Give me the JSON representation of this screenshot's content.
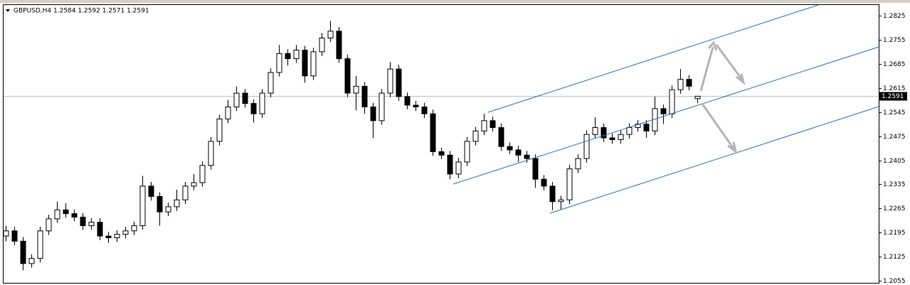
{
  "chart_data": {
    "type": "candlestick",
    "title": "GBPUSD,H4  1.2584 1.2592 1.2571 1.2591",
    "open": [
      1.2185,
      1.22,
      1.217,
      1.2105,
      1.212,
      1.22,
      1.2235,
      1.2261,
      1.225,
      1.224,
      1.2215,
      1.2225,
      1.2185,
      1.218,
      1.219,
      1.22,
      1.2215,
      1.233,
      1.23,
      1.2255,
      1.227,
      1.229,
      1.233,
      1.234,
      1.239,
      1.246,
      1.2525,
      1.256,
      1.26,
      1.257,
      1.254,
      1.26,
      1.266,
      1.2715,
      1.27,
      1.2725,
      1.265,
      1.272,
      1.276,
      1.278,
      1.27,
      1.26,
      1.262,
      1.256,
      1.252,
      1.26,
      1.267,
      1.259,
      1.2565,
      1.256,
      1.254,
      1.243,
      1.242,
      1.2365,
      1.24,
      1.246,
      1.249,
      1.252,
      1.25,
      1.2445,
      1.2435,
      1.242,
      1.241,
      1.235,
      1.233,
      1.2285,
      1.229,
      1.238,
      1.241,
      1.248,
      1.25,
      1.247,
      1.2465,
      1.248,
      1.25,
      1.251,
      1.249,
      1.2555,
      1.254,
      1.261,
      1.264,
      1.2584
    ],
    "high": [
      1.2215,
      1.2212,
      1.2182,
      1.2132,
      1.2212,
      1.2247,
      1.2285,
      1.228,
      1.2262,
      1.2252,
      1.2237,
      1.2237,
      1.2197,
      1.2202,
      1.2212,
      1.2227,
      1.236,
      1.2342,
      1.2312,
      1.2282,
      1.232,
      1.2342,
      1.2365,
      1.2402,
      1.2472,
      1.2537,
      1.258,
      1.262,
      1.2612,
      1.2582,
      1.2612,
      1.2672,
      1.274,
      1.2727,
      1.274,
      1.2737,
      1.2732,
      1.2775,
      1.281,
      1.2792,
      1.2712,
      1.265,
      1.2632,
      1.2572,
      1.2612,
      1.269,
      1.2682,
      1.2602,
      1.2577,
      1.2572,
      1.2552,
      1.2442,
      1.2432,
      1.2412,
      1.2472,
      1.2502,
      1.254,
      1.2532,
      1.2512,
      1.2457,
      1.2447,
      1.2432,
      1.2422,
      1.2362,
      1.2342,
      1.2302,
      1.2392,
      1.2422,
      1.2492,
      1.253,
      1.2512,
      1.2482,
      1.2492,
      1.2512,
      1.2522,
      1.2522,
      1.259,
      1.2567,
      1.2622,
      1.267,
      1.2652,
      1.2592
    ],
    "low": [
      1.217,
      1.2158,
      1.2085,
      1.2093,
      1.2108,
      1.2188,
      1.2223,
      1.2238,
      1.2228,
      1.2203,
      1.2203,
      1.2173,
      1.2165,
      1.2168,
      1.2178,
      1.2188,
      1.2203,
      1.2288,
      1.2215,
      1.2243,
      1.2258,
      1.2278,
      1.2318,
      1.2328,
      1.2378,
      1.2448,
      1.2513,
      1.2548,
      1.2558,
      1.2515,
      1.2528,
      1.2588,
      1.2648,
      1.268,
      1.2688,
      1.263,
      1.2638,
      1.2708,
      1.2748,
      1.2688,
      1.2588,
      1.255,
      1.254,
      1.247,
      1.2508,
      1.2588,
      1.2578,
      1.2553,
      1.2548,
      1.2528,
      1.2418,
      1.2408,
      1.235,
      1.2353,
      1.2388,
      1.2448,
      1.2478,
      1.2488,
      1.2433,
      1.2423,
      1.24,
      1.2398,
      1.2325,
      1.2318,
      1.226,
      1.2262,
      1.2278,
      1.2368,
      1.2398,
      1.2468,
      1.2458,
      1.2453,
      1.2453,
      1.2468,
      1.2488,
      1.247,
      1.2478,
      1.251,
      1.2528,
      1.2598,
      1.2608,
      1.2571
    ],
    "close": [
      1.22,
      1.217,
      1.2105,
      1.212,
      1.22,
      1.2235,
      1.2261,
      1.225,
      1.224,
      1.2215,
      1.2225,
      1.2185,
      1.218,
      1.219,
      1.22,
      1.2215,
      1.233,
      1.23,
      1.2255,
      1.227,
      1.229,
      1.233,
      1.234,
      1.239,
      1.246,
      1.2525,
      1.256,
      1.26,
      1.257,
      1.254,
      1.26,
      1.266,
      1.2715,
      1.27,
      1.2725,
      1.265,
      1.272,
      1.276,
      1.278,
      1.27,
      1.26,
      1.262,
      1.256,
      1.252,
      1.26,
      1.267,
      1.259,
      1.2565,
      1.256,
      1.254,
      1.243,
      1.242,
      1.2365,
      1.24,
      1.246,
      1.249,
      1.252,
      1.25,
      1.2445,
      1.2435,
      1.242,
      1.241,
      1.235,
      1.233,
      1.2285,
      1.229,
      1.238,
      1.241,
      1.248,
      1.25,
      1.247,
      1.2465,
      1.248,
      1.25,
      1.251,
      1.249,
      1.2555,
      1.254,
      1.261,
      1.264,
      1.262,
      1.2591
    ],
    "last_price": 1.2591,
    "ylim": [
      1.2049,
      1.2856
    ],
    "yticks": [
      1.2055,
      1.2125,
      1.2195,
      1.2265,
      1.2335,
      1.2405,
      1.2475,
      1.2545,
      1.2615,
      1.2685,
      1.2755,
      1.2825
    ]
  }
}
